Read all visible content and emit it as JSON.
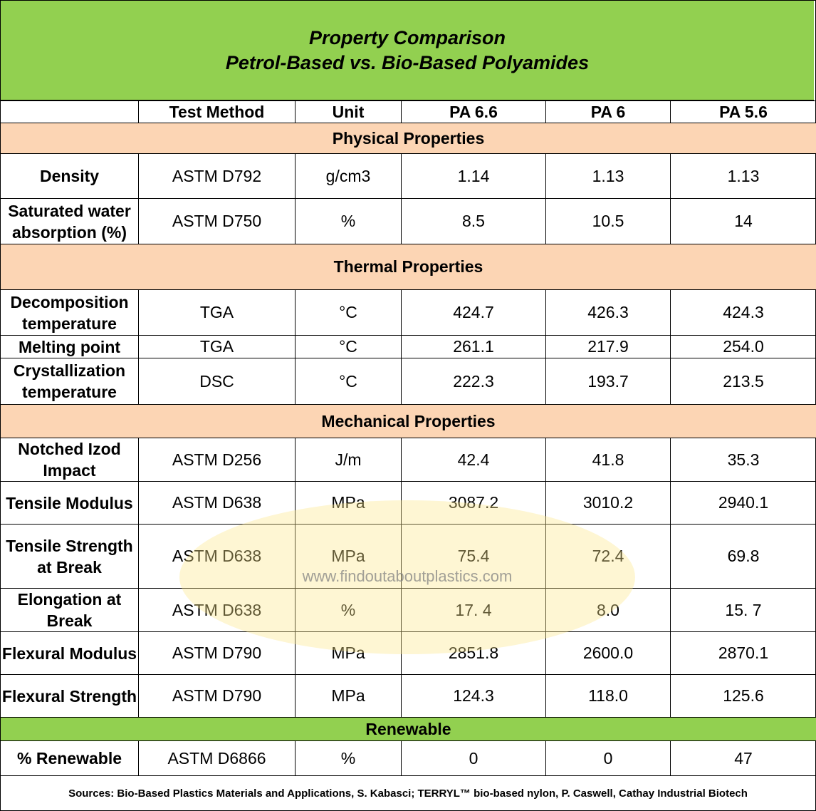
{
  "title": {
    "line1": "Property Comparison",
    "line2": "Petrol-Based vs. Bio-Based Polyamides"
  },
  "header": [
    "",
    "Test Method",
    "Unit",
    "PA 6.6",
    "PA 6",
    "PA 5.6"
  ],
  "sections": {
    "physical": "Physical Properties",
    "thermal": "Thermal Properties",
    "mechanical": "Mechanical Properties",
    "renewable": "Renewable"
  },
  "rows": {
    "density": {
      "property": "Density",
      "method": "ASTM D792",
      "unit": "g/cm3",
      "pa66": "1.14",
      "pa6": "1.13",
      "pa56": "1.13"
    },
    "water": {
      "property": "Saturated water absorption (%)",
      "method": "ASTM D750",
      "unit": "%",
      "pa66": "8.5",
      "pa6": "10.5",
      "pa56": "14"
    },
    "decomp": {
      "property": "Decomposition temperature",
      "method": "TGA",
      "unit": "°C",
      "pa66": "424.7",
      "pa6": "426.3",
      "pa56": "424.3"
    },
    "melting": {
      "property": "Melting point",
      "method": "TGA",
      "unit": "°C",
      "pa66": "261.1",
      "pa6": "217.9",
      "pa56": "254.0"
    },
    "cryst": {
      "property": "Crystallization temperature",
      "method": "DSC",
      "unit": "°C",
      "pa66": "222.3",
      "pa6": "193.7",
      "pa56": "213.5"
    },
    "izod": {
      "property": "Notched Izod Impact",
      "method": "ASTM D256",
      "unit": "J/m",
      "pa66": "42.4",
      "pa6": "41.8",
      "pa56": "35.3"
    },
    "tmod": {
      "property": "Tensile Modulus",
      "method": "ASTM D638",
      "unit": "MPa",
      "pa66": "3087.2",
      "pa6": "3010.2",
      "pa56": "2940.1"
    },
    "tstr": {
      "property": "Tensile Strength at Break",
      "method": "ASTM D638",
      "unit": "MPa",
      "pa66": "75.4",
      "pa6": "72.4",
      "pa56": "69.8"
    },
    "elong": {
      "property": "Elongation at Break",
      "method": "ASTM D638",
      "unit": "%",
      "pa66": "17. 4",
      "pa6": "8.0",
      "pa56": "15. 7"
    },
    "fmod": {
      "property": "Flexural Modulus",
      "method": "ASTM D790",
      "unit": "MPa",
      "pa66": "2851.8",
      "pa6": "2600.0",
      "pa56": "2870.1"
    },
    "fstr": {
      "property": "Flexural Strength",
      "method": "ASTM D790",
      "unit": "MPa",
      "pa66": "124.3",
      "pa6": "118.0",
      "pa56": "125.6"
    },
    "renew": {
      "property": "% Renewable",
      "method": "ASTM D6866",
      "unit": "%",
      "pa66": "0",
      "pa6": "0",
      "pa56": "47"
    }
  },
  "sources": "Sources: Bio-Based Plastics Materials and Applications, S. Kabasci; TERRYL™ bio-based nylon, P. Caswell, Cathay Industrial Biotech",
  "watermark": "www.findoutaboutplastics.com",
  "colors": {
    "title_bg": "#92d050",
    "section_bg": "#fcd5b4",
    "renewable_bg": "#92d050"
  }
}
